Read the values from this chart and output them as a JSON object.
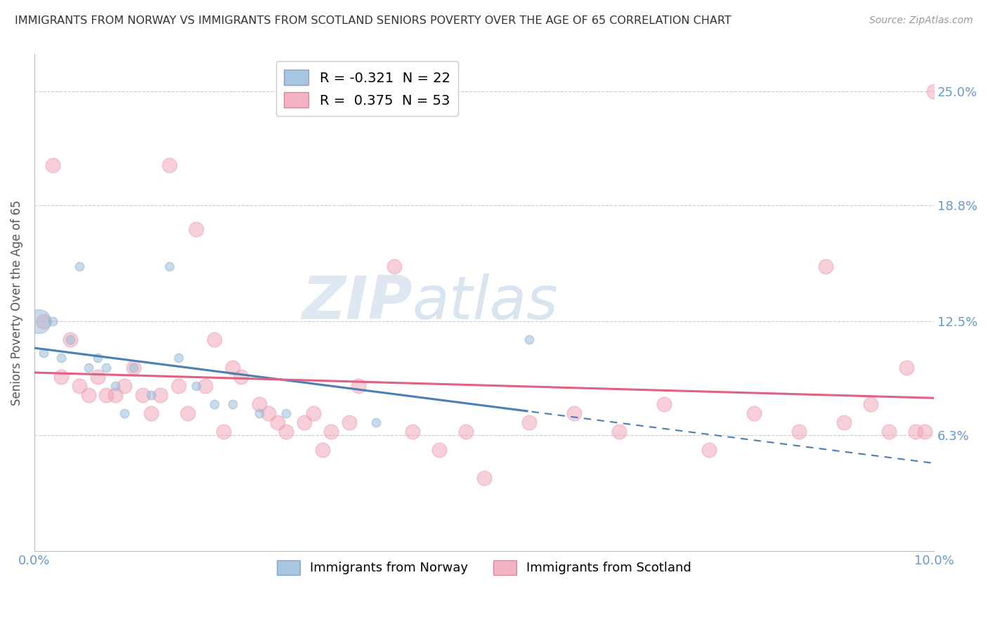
{
  "title": "IMMIGRANTS FROM NORWAY VS IMMIGRANTS FROM SCOTLAND SENIORS POVERTY OVER THE AGE OF 65 CORRELATION CHART",
  "source": "Source: ZipAtlas.com",
  "ylabel": "Seniors Poverty Over the Age of 65",
  "ytick_labels": [
    "25.0%",
    "18.8%",
    "12.5%",
    "6.3%"
  ],
  "ytick_values": [
    0.25,
    0.188,
    0.125,
    0.063
  ],
  "xlim": [
    0.0,
    0.1
  ],
  "ylim": [
    0.0,
    0.27
  ],
  "norway_color": "#92b8d8",
  "scotland_color": "#f0a0b5",
  "norway_line_color": "#4a7fb5",
  "scotland_line_color": "#e06080",
  "norway_R": -0.321,
  "norway_N": 22,
  "scotland_R": 0.375,
  "scotland_N": 53,
  "norway_points_x": [
    0.0005,
    0.001,
    0.002,
    0.003,
    0.004,
    0.005,
    0.006,
    0.007,
    0.008,
    0.009,
    0.01,
    0.011,
    0.013,
    0.015,
    0.016,
    0.018,
    0.02,
    0.022,
    0.025,
    0.028,
    0.038,
    0.055
  ],
  "norway_points_y": [
    0.125,
    0.108,
    0.125,
    0.105,
    0.115,
    0.155,
    0.1,
    0.105,
    0.1,
    0.09,
    0.075,
    0.1,
    0.085,
    0.155,
    0.105,
    0.09,
    0.08,
    0.08,
    0.075,
    0.075,
    0.07,
    0.115
  ],
  "norway_sizes": [
    600,
    80,
    80,
    80,
    80,
    80,
    80,
    80,
    80,
    80,
    80,
    80,
    80,
    80,
    80,
    80,
    80,
    80,
    80,
    80,
    80,
    80
  ],
  "scotland_points_x": [
    0.001,
    0.002,
    0.003,
    0.004,
    0.005,
    0.006,
    0.007,
    0.008,
    0.009,
    0.01,
    0.011,
    0.012,
    0.013,
    0.014,
    0.015,
    0.016,
    0.017,
    0.018,
    0.019,
    0.02,
    0.021,
    0.022,
    0.023,
    0.025,
    0.026,
    0.027,
    0.028,
    0.03,
    0.031,
    0.032,
    0.033,
    0.035,
    0.036,
    0.04,
    0.042,
    0.045,
    0.048,
    0.05,
    0.055,
    0.06,
    0.065,
    0.07,
    0.075,
    0.08,
    0.085,
    0.088,
    0.09,
    0.093,
    0.095,
    0.097,
    0.098,
    0.099,
    0.1
  ],
  "scotland_points_y": [
    0.125,
    0.21,
    0.095,
    0.115,
    0.09,
    0.085,
    0.095,
    0.085,
    0.085,
    0.09,
    0.1,
    0.085,
    0.075,
    0.085,
    0.21,
    0.09,
    0.075,
    0.175,
    0.09,
    0.115,
    0.065,
    0.1,
    0.095,
    0.08,
    0.075,
    0.07,
    0.065,
    0.07,
    0.075,
    0.055,
    0.065,
    0.07,
    0.09,
    0.155,
    0.065,
    0.055,
    0.065,
    0.04,
    0.07,
    0.075,
    0.065,
    0.08,
    0.055,
    0.075,
    0.065,
    0.155,
    0.07,
    0.08,
    0.065,
    0.1,
    0.065,
    0.065,
    0.25
  ],
  "watermark_zip": "ZIP",
  "watermark_atlas": "atlas",
  "background_color": "#ffffff",
  "grid_color": "#cccccc",
  "title_color": "#333333",
  "tick_label_color": "#6699cc",
  "ylabel_color": "#555555"
}
